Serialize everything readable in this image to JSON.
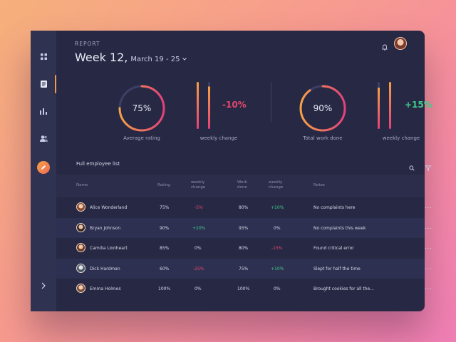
{
  "header": {
    "section_label": "REPORT",
    "week_title": "Week 12,",
    "date_range": "March 19 - 25"
  },
  "stats": [
    {
      "value": "75%",
      "fraction": 0.75,
      "label": "Average rating"
    },
    {
      "change": "-10%",
      "label": "weekly change"
    },
    {
      "value": "90%",
      "fraction": 0.9,
      "label": "Total work done"
    },
    {
      "change": "+15%",
      "label": "weekly change"
    }
  ],
  "list": {
    "title": "Full employee list",
    "columns": {
      "name": "Name",
      "rating": "Rating",
      "weekly_change_1": [
        "weekly",
        "change"
      ],
      "work_done": [
        "Work",
        "done"
      ],
      "weekly_change_2": [
        "weekly",
        "change"
      ],
      "notes": "Notes"
    },
    "rows": [
      {
        "name": "Alice Wonderland",
        "rating": "75%",
        "change1": "-5%",
        "work": "80%",
        "change2": "+10%",
        "notes": "No complaints here",
        "more": "..."
      },
      {
        "name": "Bryan Johnson",
        "rating": "90%",
        "change1": "+20%",
        "work": "95%",
        "change2": "0%",
        "notes": "No complaints this week",
        "more": "..."
      },
      {
        "name": "Camilia Lionheart",
        "rating": "85%",
        "change1": "0%",
        "work": "80%",
        "change2": "-15%",
        "notes": "Found critical error",
        "more": "..."
      },
      {
        "name": "Dick Hardman",
        "rating": "60%",
        "change1": "-25%",
        "work": "75%",
        "change2": "+10%",
        "notes": "Slept for half the time",
        "more": "..."
      },
      {
        "name": "Emma Holmes",
        "rating": "100%",
        "change1": "0%",
        "work": "100%",
        "change2": "0%",
        "notes": "Brought cookies for all the...",
        "more": "..."
      }
    ]
  },
  "icons": {
    "sidebar": [
      "dashboard-icon",
      "report-icon",
      "chart-icon",
      "users-icon",
      "edit-icon",
      "chevron-right-icon"
    ],
    "top": [
      "bell-icon",
      "avatar"
    ],
    "list": [
      "search-icon",
      "filter-icon"
    ]
  },
  "colors": {
    "accent_orange": "#f59a4b",
    "accent_pink": "#e2466d",
    "positive": "#3fcd8a",
    "panel": "#272944"
  }
}
